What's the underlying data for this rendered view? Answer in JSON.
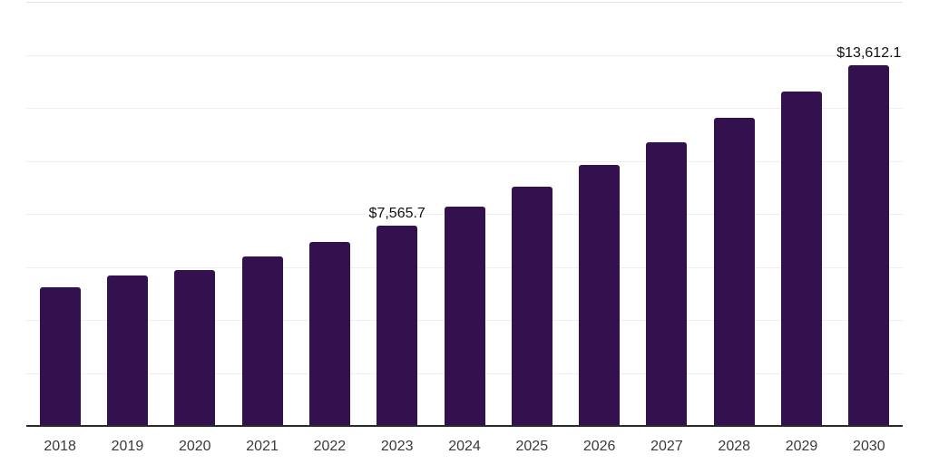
{
  "chart_data": {
    "type": "bar",
    "title": "",
    "xlabel": "",
    "ylabel": "",
    "categories": [
      "2018",
      "2019",
      "2020",
      "2021",
      "2022",
      "2023",
      "2024",
      "2025",
      "2026",
      "2027",
      "2028",
      "2029",
      "2030"
    ],
    "values": [
      5230,
      5670,
      5880,
      6380,
      6940,
      7565.7,
      8290,
      9040,
      9850,
      10700,
      11625,
      12615,
      13612.1
    ],
    "value_labels": {
      "2023": "$7,565.7",
      "2030": "$13,612.1"
    },
    "ylim": [
      0,
      16000
    ],
    "gridline_step": 2000,
    "grid": "horizontal-only",
    "y_axis_tick_labels": "none",
    "legend": "none",
    "colors": {
      "bar": "#33114e",
      "axis_line": "#2a2a2a",
      "gridline": "#efefef",
      "top_gridline": "#e2e2e2",
      "tick_label": "#3a3a3a",
      "value_label": "#111111",
      "background": "#ffffff"
    }
  }
}
